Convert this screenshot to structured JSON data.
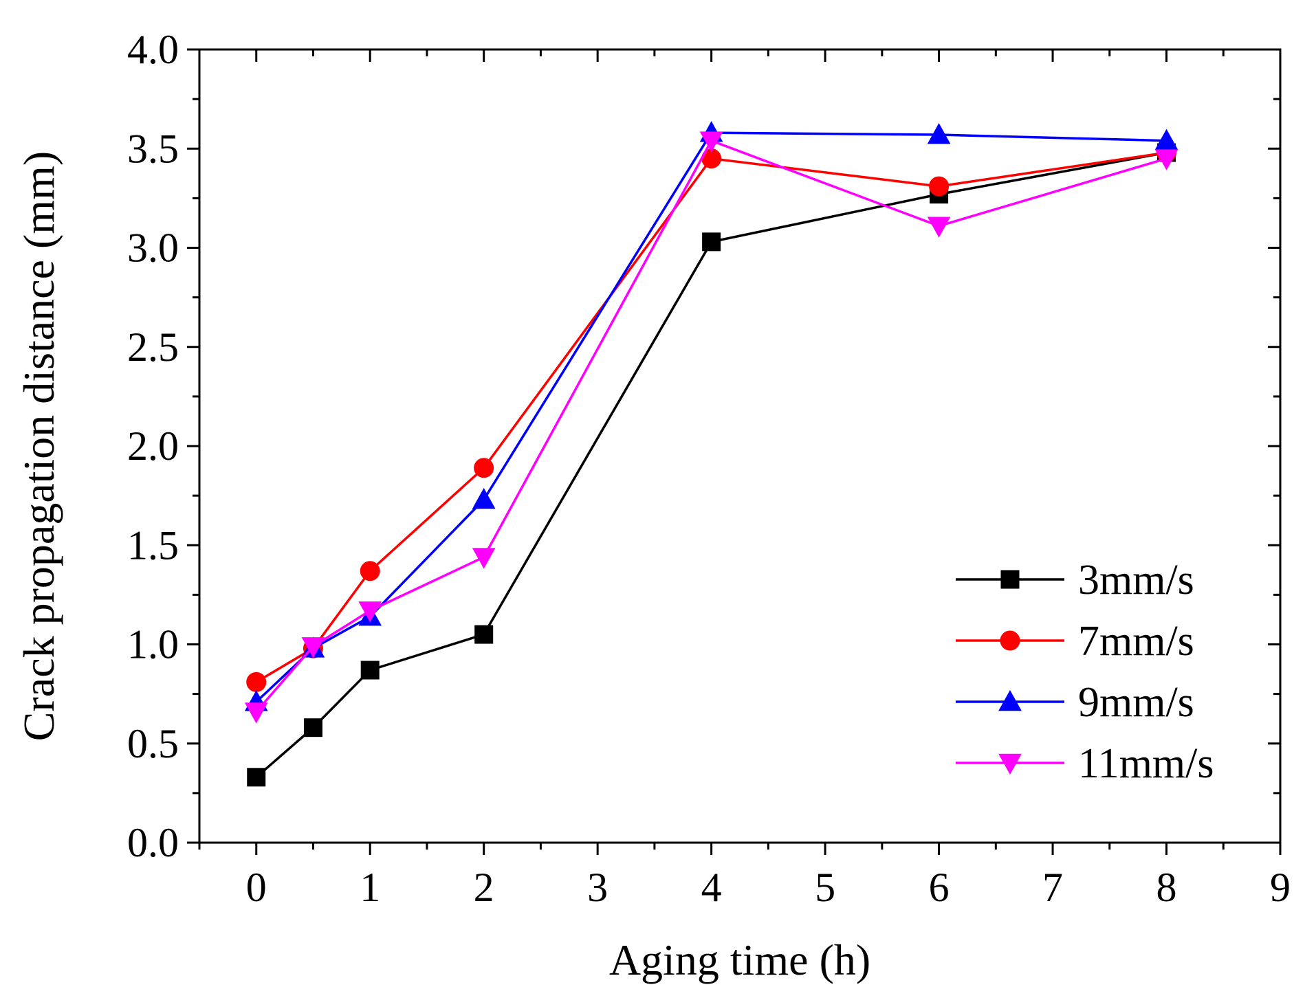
{
  "chart_data": {
    "type": "line",
    "title": "",
    "xlabel": "Aging time (h)",
    "ylabel": "Crack propagation distance (mm)",
    "xlim": [
      -0.5,
      9
    ],
    "ylim": [
      0.0,
      4.0
    ],
    "xticks": [
      0,
      1,
      2,
      3,
      4,
      5,
      6,
      7,
      8,
      9
    ],
    "xtick_labels": [
      "0",
      "1",
      "2",
      "3",
      "4",
      "5",
      "6",
      "7",
      "8",
      "9"
    ],
    "yticks": [
      0.0,
      0.5,
      1.0,
      1.5,
      2.0,
      2.5,
      3.0,
      3.5,
      4.0
    ],
    "ytick_labels": [
      "0.0",
      "0.5",
      "1.0",
      "1.5",
      "2.0",
      "2.5",
      "3.0",
      "3.5",
      "4.0"
    ],
    "grid": false,
    "legend_position": "bottom-right",
    "x": [
      0,
      0.5,
      1,
      2,
      4,
      6,
      8
    ],
    "series": [
      {
        "name": "3mm/s",
        "color": "#000000",
        "marker": "square",
        "values": [
          0.33,
          0.58,
          0.87,
          1.05,
          3.03,
          3.27,
          3.48
        ]
      },
      {
        "name": "7mm/s",
        "color": "#ff0000",
        "marker": "circle",
        "values": [
          0.81,
          0.98,
          1.37,
          1.89,
          3.45,
          3.31,
          3.48
        ]
      },
      {
        "name": "9mm/s",
        "color": "#0000ff",
        "marker": "triangle-up",
        "values": [
          0.71,
          0.98,
          1.14,
          1.73,
          3.58,
          3.57,
          3.54
        ]
      },
      {
        "name": "11mm/s",
        "color": "#ff00ff",
        "marker": "triangle-down",
        "values": [
          0.66,
          0.99,
          1.17,
          1.44,
          3.54,
          3.11,
          3.45
        ]
      }
    ]
  }
}
